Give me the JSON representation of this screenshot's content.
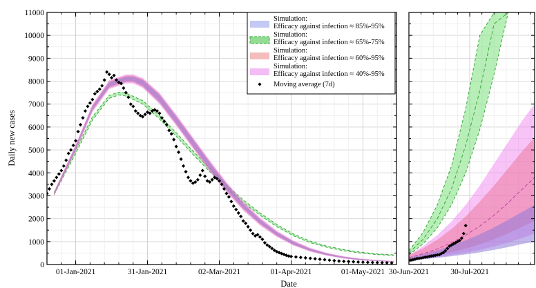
{
  "chart_data": [
    {
      "type": "line",
      "panel": "main",
      "ylabel": "Daily new cases",
      "xlabel": "Date",
      "ylim": [
        0,
        11000
      ],
      "yticks": [
        0,
        1000,
        2000,
        3000,
        4000,
        5000,
        6000,
        7000,
        8000,
        9000,
        10000,
        11000
      ],
      "xlim": [
        "2020-12-20",
        "2021-05-15"
      ],
      "xticks": [
        "01-Jan-2021",
        "31-Jan-2021",
        "02-Mar-2021",
        "01-Apr-2021",
        "01-May-2021"
      ],
      "xtick_dates": [
        "2021-01-01",
        "2021-01-31",
        "2021-03-02",
        "2021-04-01",
        "2021-05-01"
      ],
      "grid": true,
      "legend_position": "top-right",
      "legend": [
        {
          "label_line1": "Simulation:",
          "label_line2": "Efficacy against infection ≈ 85%-95%",
          "color": "#aab0f0",
          "style": "band"
        },
        {
          "label_line1": "Simulation:",
          "label_line2": "Efficacy against infection ≈ 65%-75%",
          "color": "#66cc66",
          "style": "band-dashed"
        },
        {
          "label_line1": "Simulation:",
          "label_line2": "Efficacy against infection ≈ 60%-95%",
          "color": "#f0a0a0",
          "style": "band"
        },
        {
          "label_line1": "Simulation:",
          "label_line2": "Efficacy against infection ≈ 40%-95%",
          "color": "#f0a0f0",
          "style": "band"
        },
        {
          "label_line1": "Moving average (7d)",
          "label_line2": "",
          "color": "#000000",
          "style": "marker"
        }
      ],
      "series": [
        {
          "name": "Simulation: Efficacy against infection ≈ 65%-75%",
          "kind": "band",
          "x": [
            "2020-12-23",
            "2021-01-01",
            "2021-01-08",
            "2021-01-15",
            "2021-01-19",
            "2021-01-22",
            "2021-01-29",
            "2021-02-05",
            "2021-02-12",
            "2021-02-19",
            "2021-02-26",
            "2021-03-05",
            "2021-03-12",
            "2021-03-19",
            "2021-03-26",
            "2021-04-02",
            "2021-04-09",
            "2021-04-16",
            "2021-04-23",
            "2021-04-30",
            "2021-05-07",
            "2021-05-14"
          ],
          "low": [
            3050,
            4850,
            6300,
            7250,
            7400,
            7350,
            7000,
            6350,
            5600,
            4800,
            4050,
            3350,
            2700,
            2150,
            1650,
            1250,
            950,
            750,
            600,
            500,
            430,
            400
          ],
          "high": [
            3150,
            5000,
            6450,
            7380,
            7520,
            7480,
            7150,
            6500,
            5750,
            4950,
            4200,
            3480,
            2820,
            2250,
            1750,
            1330,
            1020,
            800,
            650,
            540,
            460,
            420
          ]
        },
        {
          "name": "Simulation: Efficacy against infection ≈ 40%-95%",
          "kind": "band",
          "x": [
            "2020-12-23",
            "2021-01-01",
            "2021-01-08",
            "2021-01-15",
            "2021-01-22",
            "2021-01-25",
            "2021-01-29",
            "2021-02-05",
            "2021-02-12",
            "2021-02-19",
            "2021-02-26",
            "2021-03-05",
            "2021-03-12",
            "2021-03-19",
            "2021-03-26",
            "2021-04-02",
            "2021-04-09",
            "2021-04-16",
            "2021-04-23",
            "2021-04-30",
            "2021-05-07",
            "2021-05-14"
          ],
          "low": [
            3000,
            4950,
            6650,
            7650,
            7900,
            7900,
            7700,
            7000,
            6050,
            5050,
            4050,
            3150,
            2350,
            1700,
            1200,
            820,
            560,
            380,
            260,
            180,
            140,
            110
          ],
          "high": [
            3200,
            5250,
            7000,
            8050,
            8300,
            8300,
            8150,
            7500,
            6550,
            5550,
            4550,
            3600,
            2750,
            2050,
            1480,
            1050,
            730,
            510,
            360,
            260,
            200,
            160
          ]
        },
        {
          "name": "Simulation: Efficacy against infection ≈ 60%-95%",
          "kind": "band",
          "x": [
            "2020-12-23",
            "2021-01-01",
            "2021-01-08",
            "2021-01-15",
            "2021-01-22",
            "2021-01-25",
            "2021-01-29",
            "2021-02-05",
            "2021-02-12",
            "2021-02-19",
            "2021-02-26",
            "2021-03-05",
            "2021-03-12",
            "2021-03-19",
            "2021-03-26",
            "2021-04-02",
            "2021-04-09",
            "2021-04-16",
            "2021-04-23",
            "2021-04-30",
            "2021-05-07",
            "2021-05-14"
          ],
          "low": [
            3020,
            4980,
            6700,
            7700,
            7950,
            7950,
            7750,
            7050,
            6100,
            5100,
            4100,
            3200,
            2400,
            1750,
            1240,
            850,
            580,
            400,
            270,
            190,
            150,
            115
          ],
          "high": [
            3180,
            5200,
            6950,
            8000,
            8250,
            8250,
            8100,
            7450,
            6500,
            5500,
            4500,
            3550,
            2700,
            2000,
            1440,
            1010,
            700,
            490,
            345,
            250,
            190,
            150
          ]
        },
        {
          "name": "Simulation: Efficacy against infection ≈ 85%-95%",
          "kind": "band",
          "x": [
            "2020-12-23",
            "2021-01-01",
            "2021-01-08",
            "2021-01-15",
            "2021-01-22",
            "2021-01-25",
            "2021-01-29",
            "2021-02-05",
            "2021-02-12",
            "2021-02-19",
            "2021-02-26",
            "2021-03-05",
            "2021-03-12",
            "2021-03-19",
            "2021-03-26",
            "2021-04-02",
            "2021-04-09",
            "2021-04-16",
            "2021-04-23",
            "2021-04-30",
            "2021-05-07",
            "2021-05-14"
          ],
          "low": [
            3060,
            5020,
            6750,
            7750,
            8000,
            8000,
            7800,
            7100,
            6150,
            5150,
            4150,
            3250,
            2450,
            1790,
            1270,
            870,
            600,
            410,
            280,
            200,
            155,
            120
          ],
          "high": [
            3140,
            5160,
            6900,
            7950,
            8200,
            8200,
            8050,
            7400,
            6450,
            5450,
            4450,
            3500,
            2650,
            1960,
            1410,
            990,
            680,
            470,
            330,
            240,
            180,
            140
          ]
        },
        {
          "name": "Moving average (7d)",
          "kind": "scatter",
          "x": [
            "2020-12-20",
            "2020-12-21",
            "2020-12-22",
            "2020-12-23",
            "2020-12-24",
            "2020-12-25",
            "2020-12-26",
            "2020-12-27",
            "2020-12-28",
            "2020-12-29",
            "2020-12-30",
            "2020-12-31",
            "2021-01-01",
            "2021-01-02",
            "2021-01-03",
            "2021-01-04",
            "2021-01-05",
            "2021-01-06",
            "2021-01-07",
            "2021-01-08",
            "2021-01-09",
            "2021-01-10",
            "2021-01-11",
            "2021-01-12",
            "2021-01-13",
            "2021-01-14",
            "2021-01-15",
            "2021-01-16",
            "2021-01-17",
            "2021-01-18",
            "2021-01-19",
            "2021-01-20",
            "2021-01-21",
            "2021-01-22",
            "2021-01-23",
            "2021-01-24",
            "2021-01-25",
            "2021-01-26",
            "2021-01-27",
            "2021-01-28",
            "2021-01-29",
            "2021-01-30",
            "2021-01-31",
            "2021-02-01",
            "2021-02-02",
            "2021-02-03",
            "2021-02-04",
            "2021-02-05",
            "2021-02-06",
            "2021-02-07",
            "2021-02-08",
            "2021-02-09",
            "2021-02-10",
            "2021-02-11",
            "2021-02-12",
            "2021-02-13",
            "2021-02-14",
            "2021-02-15",
            "2021-02-16",
            "2021-02-17",
            "2021-02-18",
            "2021-02-19",
            "2021-02-20",
            "2021-02-21",
            "2021-02-22",
            "2021-02-23",
            "2021-02-24",
            "2021-02-25",
            "2021-02-26",
            "2021-02-27",
            "2021-02-28",
            "2021-03-01",
            "2021-03-02",
            "2021-03-03",
            "2021-03-04",
            "2021-03-05",
            "2021-03-06",
            "2021-03-07",
            "2021-03-08",
            "2021-03-09",
            "2021-03-10",
            "2021-03-11",
            "2021-03-12",
            "2021-03-13",
            "2021-03-14",
            "2021-03-15",
            "2021-03-16",
            "2021-03-17",
            "2021-03-18",
            "2021-03-19",
            "2021-03-20",
            "2021-03-21",
            "2021-03-22",
            "2021-03-23",
            "2021-03-24",
            "2021-03-25",
            "2021-03-26",
            "2021-03-27",
            "2021-03-28",
            "2021-03-29",
            "2021-03-30",
            "2021-03-31",
            "2021-04-01",
            "2021-04-03",
            "2021-04-05",
            "2021-04-07",
            "2021-04-09",
            "2021-04-11",
            "2021-04-13",
            "2021-04-15",
            "2021-04-17",
            "2021-04-19",
            "2021-04-21",
            "2021-04-23",
            "2021-04-25",
            "2021-04-27",
            "2021-04-29",
            "2021-05-01",
            "2021-05-03",
            "2021-05-05",
            "2021-05-07",
            "2021-05-09",
            "2021-05-11",
            "2021-05-13"
          ],
          "y": [
            3100,
            3300,
            3500,
            3650,
            3800,
            3950,
            4100,
            4300,
            4550,
            4850,
            5000,
            5200,
            5400,
            5800,
            6100,
            6400,
            6700,
            6900,
            7050,
            7200,
            7450,
            7550,
            7650,
            7800,
            8050,
            8400,
            8300,
            8150,
            8250,
            8050,
            7950,
            7900,
            7700,
            7500,
            7300,
            7000,
            6900,
            6700,
            6600,
            6500,
            6450,
            6550,
            6650,
            6600,
            6700,
            6750,
            6700,
            6600,
            6400,
            6250,
            6100,
            5850,
            5700,
            5450,
            5150,
            4900,
            4600,
            4300,
            4050,
            3800,
            3650,
            3550,
            3600,
            3700,
            3900,
            4100,
            3850,
            3650,
            3600,
            3700,
            3800,
            3750,
            3650,
            3500,
            3300,
            3100,
            2950,
            2750,
            2550,
            2400,
            2250,
            2100,
            1900,
            1800,
            1650,
            1500,
            1350,
            1250,
            1300,
            1200,
            1100,
            950,
            850,
            780,
            700,
            620,
            560,
            520,
            480,
            440,
            400,
            370,
            350,
            330,
            310,
            290,
            270,
            250,
            230,
            210,
            190,
            170,
            150,
            140,
            130,
            120,
            110,
            100,
            95,
            90,
            85,
            80,
            75,
            70
          ]
        }
      ]
    },
    {
      "type": "line",
      "panel": "inset",
      "ylim": [
        0,
        11000
      ],
      "xlim": [
        "2021-06-30",
        "2021-08-31"
      ],
      "xticks": [
        "30-Jun-2021",
        "30-Jul-2021"
      ],
      "xtick_dates": [
        "2021-06-30",
        "2021-07-30"
      ],
      "grid": true,
      "series": [
        {
          "name": "Simulation: Efficacy against infection ≈ 65%-75%",
          "kind": "band",
          "x": [
            "2021-06-30",
            "2021-07-07",
            "2021-07-14",
            "2021-07-21",
            "2021-07-28",
            "2021-08-04",
            "2021-08-11",
            "2021-08-18",
            "2021-08-25",
            "2021-08-31"
          ],
          "low": [
            420,
            900,
            1600,
            2600,
            4000,
            5900,
            8300,
            11000,
            11000,
            11000
          ],
          "high": [
            600,
            1400,
            2600,
            4300,
            6800,
            10000,
            11000,
            11000,
            11000,
            11000
          ],
          "center": [
            500,
            1100,
            2000,
            3300,
            5200,
            7600,
            10500,
            11000,
            11000,
            11000
          ]
        },
        {
          "name": "Simulation: Efficacy against infection ≈ 40%-95%",
          "kind": "band",
          "x": [
            "2021-06-30",
            "2021-07-07",
            "2021-07-14",
            "2021-07-21",
            "2021-07-28",
            "2021-08-04",
            "2021-08-11",
            "2021-08-18",
            "2021-08-25",
            "2021-08-31"
          ],
          "low": [
            200,
            260,
            330,
            420,
            520,
            640,
            790,
            960,
            1160,
            1350
          ],
          "high": [
            420,
            800,
            1280,
            1880,
            2600,
            3450,
            4400,
            5350,
            6300,
            7000
          ]
        },
        {
          "name": "Simulation: Efficacy against infection ≈ 60%-95%",
          "kind": "band",
          "x": [
            "2021-06-30",
            "2021-07-07",
            "2021-07-14",
            "2021-07-21",
            "2021-07-28",
            "2021-08-04",
            "2021-08-11",
            "2021-08-18",
            "2021-08-25",
            "2021-08-31"
          ],
          "low": [
            230,
            310,
            410,
            540,
            690,
            880,
            1100,
            1360,
            1650,
            1900
          ],
          "high": [
            400,
            700,
            1080,
            1550,
            2100,
            2750,
            3450,
            4200,
            4950,
            5550
          ],
          "center": [
            300,
            470,
            680,
            950,
            1280,
            1680,
            2150,
            2700,
            3300,
            3800
          ]
        },
        {
          "name": "Simulation: Efficacy against infection ≈ 85%-95%",
          "kind": "band",
          "x": [
            "2021-06-30",
            "2021-07-07",
            "2021-07-14",
            "2021-07-21",
            "2021-07-28",
            "2021-08-04",
            "2021-08-11",
            "2021-08-18",
            "2021-08-25",
            "2021-08-31"
          ],
          "low": [
            180,
            230,
            290,
            360,
            440,
            530,
            640,
            760,
            900,
            1000
          ],
          "high": [
            300,
            450,
            620,
            820,
            1050,
            1320,
            1620,
            1950,
            2300,
            2600
          ]
        },
        {
          "name": "Moving average (7d)",
          "kind": "scatter",
          "x": [
            "2021-06-30",
            "2021-07-01",
            "2021-07-02",
            "2021-07-03",
            "2021-07-04",
            "2021-07-05",
            "2021-07-06",
            "2021-07-07",
            "2021-07-08",
            "2021-07-09",
            "2021-07-10",
            "2021-07-11",
            "2021-07-12",
            "2021-07-13",
            "2021-07-14",
            "2021-07-15",
            "2021-07-16",
            "2021-07-17",
            "2021-07-18",
            "2021-07-19",
            "2021-07-20",
            "2021-07-21",
            "2021-07-22",
            "2021-07-23",
            "2021-07-24",
            "2021-07-25",
            "2021-07-26",
            "2021-07-27",
            "2021-07-28"
          ],
          "y": [
            180,
            190,
            210,
            230,
            260,
            270,
            280,
            300,
            320,
            330,
            350,
            370,
            380,
            400,
            420,
            430,
            480,
            520,
            600,
            700,
            800,
            850,
            900,
            950,
            1000,
            1050,
            1150,
            1350,
            1700
          ]
        }
      ]
    }
  ]
}
